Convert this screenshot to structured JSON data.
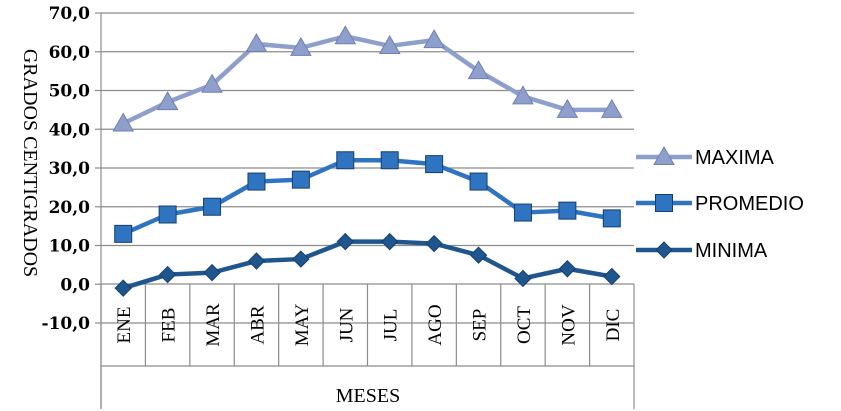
{
  "chart_data": {
    "type": "line",
    "categories": [
      "ENE",
      "FEB",
      "MAR",
      "ABR",
      "MAY",
      "JUN",
      "JUL",
      "AGO",
      "SEP",
      "OCT",
      "NOV",
      "DIC"
    ],
    "series": [
      {
        "name": "MAXIMA",
        "color": "#8e9fcb",
        "marker": "triangle",
        "values": [
          41.5,
          47.0,
          51.5,
          62.0,
          61.0,
          64.0,
          61.5,
          63.0,
          55.0,
          48.5,
          45.0,
          45.0
        ]
      },
      {
        "name": "PROMEDIO",
        "color": "#2f74c0",
        "marker": "square",
        "values": [
          13.0,
          18.0,
          20.0,
          26.5,
          27.0,
          32.0,
          32.0,
          31.0,
          26.5,
          18.5,
          19.0,
          17.0
        ]
      },
      {
        "name": "MINIMA",
        "color": "#1f568e",
        "marker": "diamond",
        "values": [
          -1.0,
          2.5,
          3.0,
          6.0,
          6.5,
          11.0,
          11.0,
          10.5,
          7.5,
          1.5,
          4.0,
          2.0
        ]
      }
    ],
    "ylim": [
      -10,
      70
    ],
    "yticks": [
      "-10,0",
      "0,0",
      "10,0",
      "20,0",
      "30,0",
      "40,0",
      "50,0",
      "60,0",
      "70,0"
    ],
    "xlabel": "MESES",
    "ylabel": "GRADOS CENTIGRADOS",
    "grid": "horizontal",
    "legend": "right"
  }
}
